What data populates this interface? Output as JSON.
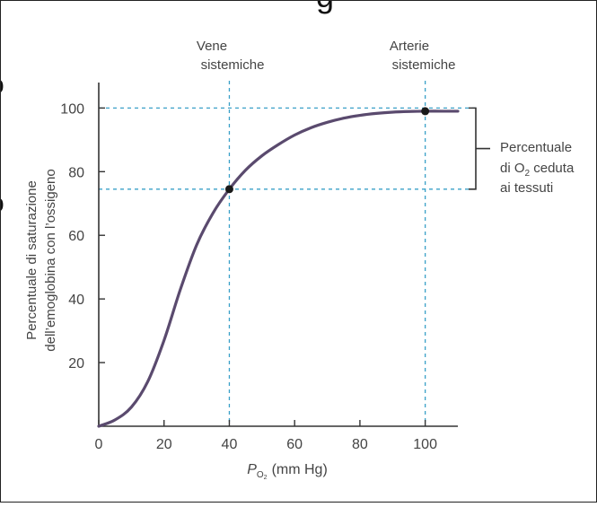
{
  "chart_data": {
    "type": "line",
    "title": "",
    "xlabel": "P",
    "xlabel_sub": "O",
    "xlabel_subsub": "2",
    "xlabel_unit": "(mm Hg)",
    "ylabel_line1": "Percentuale di saturazione",
    "ylabel_line2": "dell’emoglobina con l’ossigeno",
    "xlim": [
      0,
      110
    ],
    "ylim": [
      0,
      108
    ],
    "xticks": [
      0,
      20,
      40,
      60,
      80,
      100
    ],
    "yticks": [
      20,
      40,
      60,
      80,
      100
    ],
    "series": [
      {
        "color": "#5a4a6e",
        "x": [
          0,
          5,
          10,
          15,
          20,
          25,
          30,
          35,
          40,
          45,
          50,
          55,
          60,
          65,
          70,
          75,
          80,
          85,
          90,
          95,
          100,
          105,
          110
        ],
        "y": [
          0,
          2,
          6,
          14,
          27,
          43,
          57,
          67,
          74.5,
          80.5,
          85,
          88.5,
          91.5,
          93.8,
          95.5,
          96.8,
          97.7,
          98.3,
          98.7,
          98.9,
          99,
          99,
          99
        ]
      }
    ],
    "points": [
      {
        "x": 40,
        "y": 74.5
      },
      {
        "x": 100,
        "y": 99
      }
    ],
    "annotations": {
      "vene_line1": "Vene",
      "vene_line2": "sistemiche",
      "arterie_line1": "Arterie",
      "arterie_line2": "sistemiche",
      "bracket_line1": "Percentuale",
      "bracket_line2_pre": "di O",
      "bracket_line2_sub": "2",
      "bracket_line2_post": " ceduta",
      "bracket_line3": "ai tessuti"
    },
    "top_fragment": "g",
    "left_fragments": [
      "o",
      "o"
    ],
    "guide_color": "#3aa0c8",
    "axis_color": "#333333"
  }
}
